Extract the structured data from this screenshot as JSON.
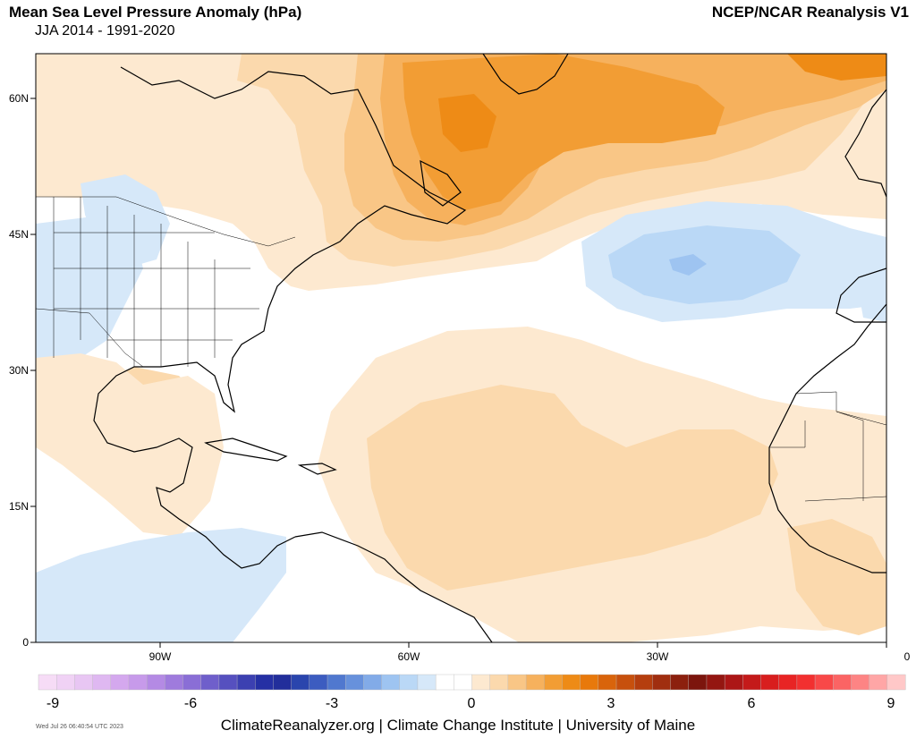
{
  "header": {
    "title": "Mean Sea Level Pressure Anomaly (hPa)",
    "subtitle": "JJA 2014 - 1991-2020",
    "dataset": "NCEP/NCAR Reanalysis V1"
  },
  "map": {
    "lat_labels": [
      "60N",
      "45N",
      "30N",
      "15N",
      "0"
    ],
    "lon_labels": [
      "90W",
      "60W",
      "30W",
      "0"
    ],
    "extent": {
      "lon_min": -105,
      "lon_max": 0,
      "lat_min": 0,
      "lat_max": 65
    },
    "anomaly_regions": [
      {
        "name": "positive-anomaly-north-atlantic",
        "sign": "positive",
        "max_approx": 3
      },
      {
        "name": "negative-anomaly-azores",
        "sign": "negative",
        "min_approx": -1.5
      },
      {
        "name": "positive-anomaly-tropical-atlantic",
        "sign": "positive",
        "max_approx": 1.0
      },
      {
        "name": "negative-anomaly-eastern-pacific",
        "sign": "negative",
        "min_approx": -0.5
      }
    ]
  },
  "colorbar": {
    "min": -9,
    "max": 9,
    "tick_labels": [
      "-9",
      "-6",
      "-3",
      "0",
      "3",
      "6",
      "9"
    ],
    "colors": [
      "#f6dcf6",
      "#f0d2f5",
      "#e8c6f3",
      "#dfb8f1",
      "#d4a8ee",
      "#c79aea",
      "#b48ae4",
      "#9f7bdd",
      "#8a6ed6",
      "#6f5fcb",
      "#5650bf",
      "#3c40b1",
      "#2530a4",
      "#222e9b",
      "#2a45ad",
      "#3c5cc0",
      "#5078cf",
      "#6791dc",
      "#82abe8",
      "#9ec4f1",
      "#bad8f6",
      "#d6e8f9",
      "#ffffff",
      "#ffffff",
      "#fde9d0",
      "#fbd9ad",
      "#f9c686",
      "#f6b15d",
      "#f29d34",
      "#ee8b16",
      "#e8790b",
      "#d9640b",
      "#c7500d",
      "#b53e0e",
      "#a02e0f",
      "#8c200e",
      "#7c150d",
      "#941611",
      "#ac1616",
      "#c41a1a",
      "#d81e1e",
      "#e82424",
      "#f23030",
      "#f84848",
      "#fb6464",
      "#fd8484",
      "#ffa6a6",
      "#ffc8c8"
    ]
  },
  "footer": {
    "credit": "ClimateReanalyzer.org | Climate Change Institute | University of Maine",
    "timestamp": "Wed Jul 26 06:40:54 UTC 2023"
  }
}
